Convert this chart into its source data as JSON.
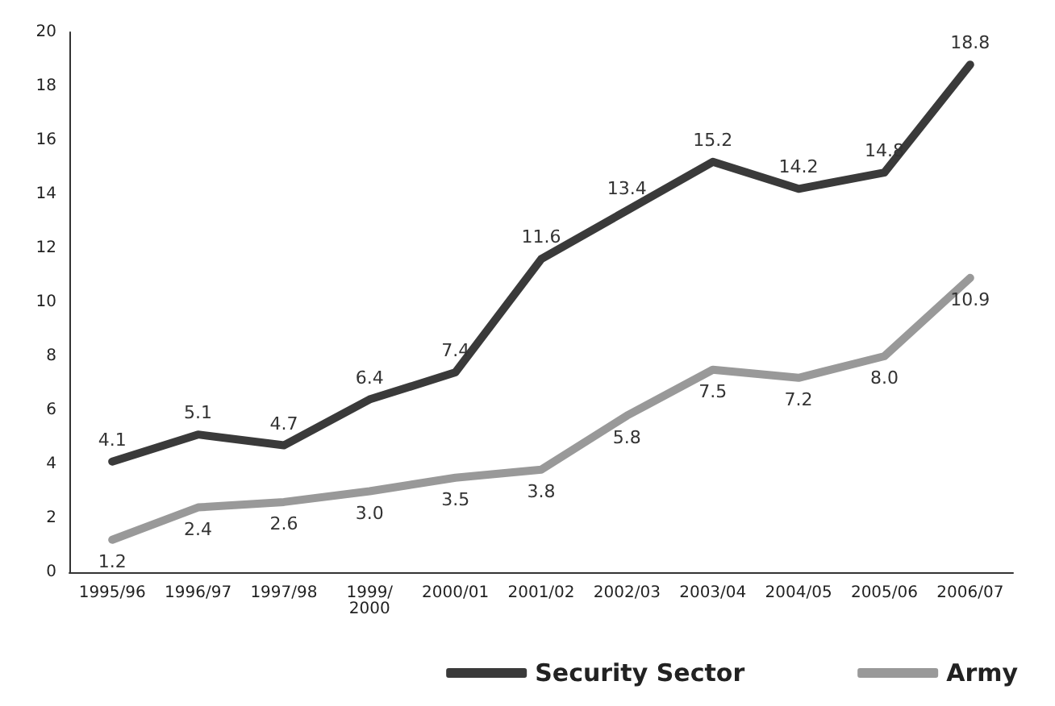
{
  "chart_data": {
    "type": "line",
    "categories": [
      "1995/96",
      "1996/97",
      "1997/98",
      "1999/\n2000",
      "2000/01",
      "2001/02",
      "2002/03",
      "2003/04",
      "2004/05",
      "2005/06",
      "2006/07"
    ],
    "series": [
      {
        "name": "Security Sector",
        "color": "#3a3a3a",
        "values": [
          4.1,
          5.1,
          4.7,
          6.4,
          7.4,
          11.6,
          13.4,
          15.2,
          14.2,
          14.8,
          18.8
        ],
        "value_labels": [
          "4.1",
          "5.1",
          "4.7",
          "6.4",
          "7.4",
          "11.6",
          "13.4",
          "15.2",
          "14.2",
          "14.8",
          "18.8"
        ]
      },
      {
        "name": "Army",
        "color": "#999999",
        "values": [
          1.2,
          2.4,
          2.6,
          3.0,
          3.5,
          3.8,
          5.8,
          7.5,
          7.2,
          8.0,
          10.9
        ],
        "value_labels": [
          "1.2",
          "2.4",
          "2.6",
          "3.0",
          "3.5",
          "3.8",
          "5.8",
          "7.5",
          "7.2",
          "8.0",
          "10.9"
        ]
      }
    ],
    "ylim": [
      0,
      20
    ],
    "yticks": [
      0,
      2,
      4,
      6,
      8,
      10,
      12,
      14,
      16,
      18,
      20
    ],
    "grid": false,
    "legend": "bottom right",
    "marker": "none",
    "line_style": "solid"
  }
}
